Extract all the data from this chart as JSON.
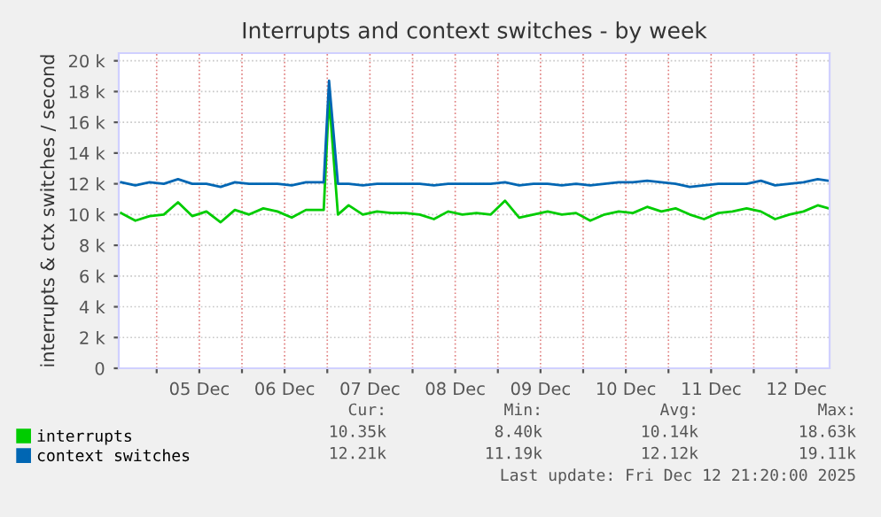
{
  "chart_data": {
    "type": "line",
    "title": "Interrupts and context switches - by week",
    "ylabel": "interrupts & ctx switches / second",
    "x": [
      "2025-12-04T14:00",
      "2025-12-04T18:00",
      "2025-12-04T22:00",
      "2025-12-05T02:00",
      "2025-12-05T06:00",
      "2025-12-05T10:00",
      "2025-12-05T14:00",
      "2025-12-05T18:00",
      "2025-12-05T22:00",
      "2025-12-06T02:00",
      "2025-12-06T06:00",
      "2025-12-06T10:00",
      "2025-12-06T14:00",
      "2025-12-06T18:00",
      "2025-12-06T23:00",
      "2025-12-07T00:30",
      "2025-12-07T03:00",
      "2025-12-07T06:00",
      "2025-12-07T10:00",
      "2025-12-07T14:00",
      "2025-12-07T18:00",
      "2025-12-07T22:00",
      "2025-12-08T02:00",
      "2025-12-08T06:00",
      "2025-12-08T10:00",
      "2025-12-08T14:00",
      "2025-12-08T18:00",
      "2025-12-08T22:00",
      "2025-12-09T02:00",
      "2025-12-09T06:00",
      "2025-12-09T10:00",
      "2025-12-09T14:00",
      "2025-12-09T18:00",
      "2025-12-09T22:00",
      "2025-12-10T02:00",
      "2025-12-10T06:00",
      "2025-12-10T10:00",
      "2025-12-10T14:00",
      "2025-12-10T18:00",
      "2025-12-10T22:00",
      "2025-12-11T02:00",
      "2025-12-11T06:00",
      "2025-12-11T10:00",
      "2025-12-11T14:00",
      "2025-12-11T18:00",
      "2025-12-11T22:00",
      "2025-12-12T02:00",
      "2025-12-12T06:00",
      "2025-12-12T10:00",
      "2025-12-12T14:00",
      "2025-12-12T18:00",
      "2025-12-12T21:00"
    ],
    "series": [
      {
        "name": "interrupts",
        "color": "#00cc00",
        "values": [
          10100,
          9600,
          9900,
          10000,
          10800,
          9900,
          10200,
          9500,
          10300,
          10000,
          10400,
          10200,
          9800,
          10300,
          10300,
          17600,
          10000,
          10600,
          10000,
          10200,
          10100,
          10100,
          10000,
          9700,
          10200,
          10000,
          10100,
          10000,
          10900,
          9800,
          10000,
          10200,
          10000,
          10100,
          9600,
          10000,
          10200,
          10100,
          10500,
          10200,
          10400,
          10000,
          9700,
          10100,
          10200,
          10400,
          10200,
          9700,
          10000,
          10200,
          10600,
          10400
        ]
      },
      {
        "name": "context switches",
        "color": "#0066b3",
        "values": [
          12100,
          11900,
          12100,
          12000,
          12300,
          12000,
          12000,
          11800,
          12100,
          12000,
          12000,
          12000,
          11900,
          12100,
          12100,
          18700,
          12000,
          12000,
          11900,
          12000,
          12000,
          12000,
          12000,
          11900,
          12000,
          12000,
          12000,
          12000,
          12100,
          11900,
          12000,
          12000,
          11900,
          12000,
          11900,
          12000,
          12100,
          12100,
          12200,
          12100,
          12000,
          11800,
          11900,
          12000,
          12000,
          12000,
          12200,
          11900,
          12000,
          12100,
          12300,
          12200
        ]
      }
    ],
    "xlim": [
      "2025-12-04T13:20",
      "2025-12-12T21:20"
    ],
    "xticks": [
      {
        "value": "2025-12-05T00:00",
        "label": null
      },
      {
        "value": "2025-12-05T12:00",
        "label": "05 Dec"
      },
      {
        "value": "2025-12-06T00:00",
        "label": null
      },
      {
        "value": "2025-12-06T12:00",
        "label": "06 Dec"
      },
      {
        "value": "2025-12-07T00:00",
        "label": null
      },
      {
        "value": "2025-12-07T12:00",
        "label": "07 Dec"
      },
      {
        "value": "2025-12-08T00:00",
        "label": null
      },
      {
        "value": "2025-12-08T12:00",
        "label": "08 Dec"
      },
      {
        "value": "2025-12-09T00:00",
        "label": null
      },
      {
        "value": "2025-12-09T12:00",
        "label": "09 Dec"
      },
      {
        "value": "2025-12-10T00:00",
        "label": null
      },
      {
        "value": "2025-12-10T12:00",
        "label": "10 Dec"
      },
      {
        "value": "2025-12-11T00:00",
        "label": null
      },
      {
        "value": "2025-12-11T12:00",
        "label": "11 Dec"
      },
      {
        "value": "2025-12-12T00:00",
        "label": null
      },
      {
        "value": "2025-12-12T12:00",
        "label": "12 Dec"
      }
    ],
    "ylim": [
      0,
      20500
    ],
    "yticks": [
      0,
      {
        "value": 2000,
        "label": "2 k"
      },
      {
        "value": 4000,
        "label": "4 k"
      },
      {
        "value": 6000,
        "label": "6 k"
      },
      {
        "value": 8000,
        "label": "8 k"
      },
      {
        "value": 10000,
        "label": "10 k"
      },
      {
        "value": 12000,
        "label": "12 k"
      },
      {
        "value": 14000,
        "label": "14 k"
      },
      {
        "value": 16000,
        "label": "16 k"
      },
      {
        "value": 18000,
        "label": "18 k"
      },
      {
        "value": 20000,
        "label": "20 k"
      }
    ],
    "grid": true,
    "legend": "bottom",
    "annotations": [
      "Cur:",
      "Min:",
      "Avg:",
      "Max:",
      "10.35k",
      "8.40k",
      "10.14k",
      "18.63k",
      "12.21k",
      "11.19k",
      "12.12k",
      "19.11k",
      "Last update: Fri Dec 12 21:20:00 2025"
    ]
  }
}
